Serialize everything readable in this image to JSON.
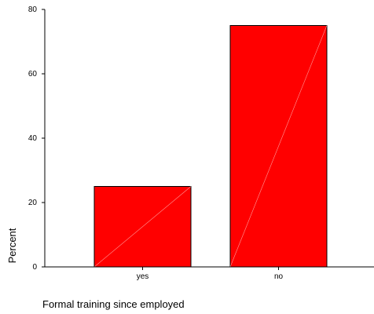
{
  "chart_data": {
    "type": "bar",
    "categories": [
      "yes",
      "no"
    ],
    "values": [
      25,
      75
    ],
    "xlabel": "Formal training since employed",
    "ylabel": "Percent",
    "ylim": [
      0,
      80
    ],
    "yticks": [
      0,
      20,
      40,
      60,
      80
    ],
    "grid": false,
    "colors": {
      "bar_fill": "#ff0000",
      "bar_stroke": "#000000",
      "bar_diagonal": "#ff9a9a",
      "axis": "#000000"
    }
  }
}
